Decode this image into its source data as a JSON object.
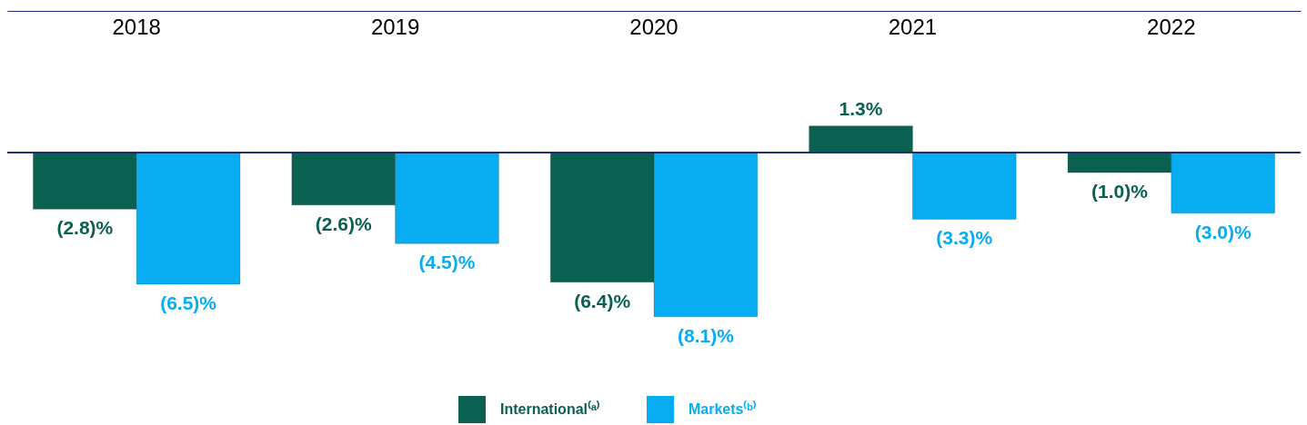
{
  "chart_data": {
    "type": "bar",
    "categories": [
      "2018",
      "2019",
      "2020",
      "2021",
      "2022"
    ],
    "series": [
      {
        "name": "International⁽ᵃ⁾",
        "color": "#0a6152",
        "values": [
          -2.8,
          -2.6,
          -6.4,
          1.3,
          -1.0
        ],
        "value_labels": [
          "(2.8)%",
          "(2.6)%",
          "(6.4)%",
          "1.3%",
          "(1.0)%"
        ]
      },
      {
        "name": "Markets⁽ᵇ⁾",
        "color": "#07adf0",
        "values": [
          -6.5,
          -4.5,
          -8.1,
          -3.3,
          -3.0
        ],
        "value_labels": [
          "(6.5)%",
          "(4.5)%",
          "(8.1)%",
          "(3.3)%",
          "(3.0)%"
        ]
      }
    ],
    "legend": "bottom",
    "grid": false,
    "ref_lines": [
      {
        "axis": "y",
        "value": 0,
        "color": "#1f2a6e"
      }
    ]
  }
}
